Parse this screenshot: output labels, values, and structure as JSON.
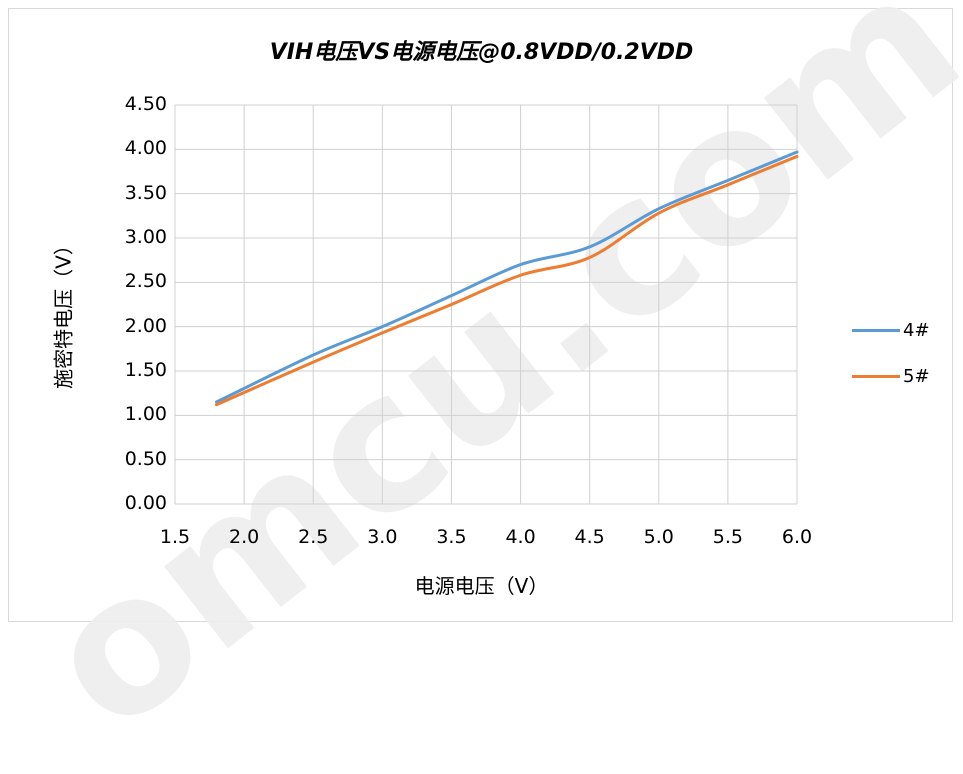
{
  "chart_data": {
    "type": "line",
    "title": "VIH电压VS电源电压@0.8VDD/0.2VDD",
    "xlabel": "电源电压（V）",
    "ylabel": "施密特电压（V）",
    "xlim": [
      1.5,
      6.0
    ],
    "ylim": [
      0.0,
      4.5
    ],
    "xticks": [
      "1.5",
      "2.0",
      "2.5",
      "3.0",
      "3.5",
      "4.0",
      "4.5",
      "5.0",
      "5.5",
      "6.0"
    ],
    "yticks": [
      "0.00",
      "0.50",
      "1.00",
      "1.50",
      "2.00",
      "2.50",
      "3.00",
      "3.50",
      "4.00",
      "4.50"
    ],
    "grid": true,
    "legend_position": "right",
    "series": [
      {
        "name": "4#",
        "color": "#5b9bd5",
        "x": [
          1.8,
          2.5,
          3.0,
          3.5,
          4.0,
          4.5,
          5.0,
          5.5,
          6.0
        ],
        "y": [
          1.15,
          1.68,
          2.0,
          2.35,
          2.7,
          2.9,
          3.33,
          3.65,
          3.97
        ]
      },
      {
        "name": "5#",
        "color": "#ed7d31",
        "x": [
          1.8,
          2.5,
          3.0,
          3.5,
          4.0,
          4.5,
          5.0,
          5.5,
          6.0
        ],
        "y": [
          1.12,
          1.6,
          1.93,
          2.25,
          2.58,
          2.78,
          3.28,
          3.6,
          3.92
        ]
      }
    ]
  },
  "watermark": "omcu.com"
}
